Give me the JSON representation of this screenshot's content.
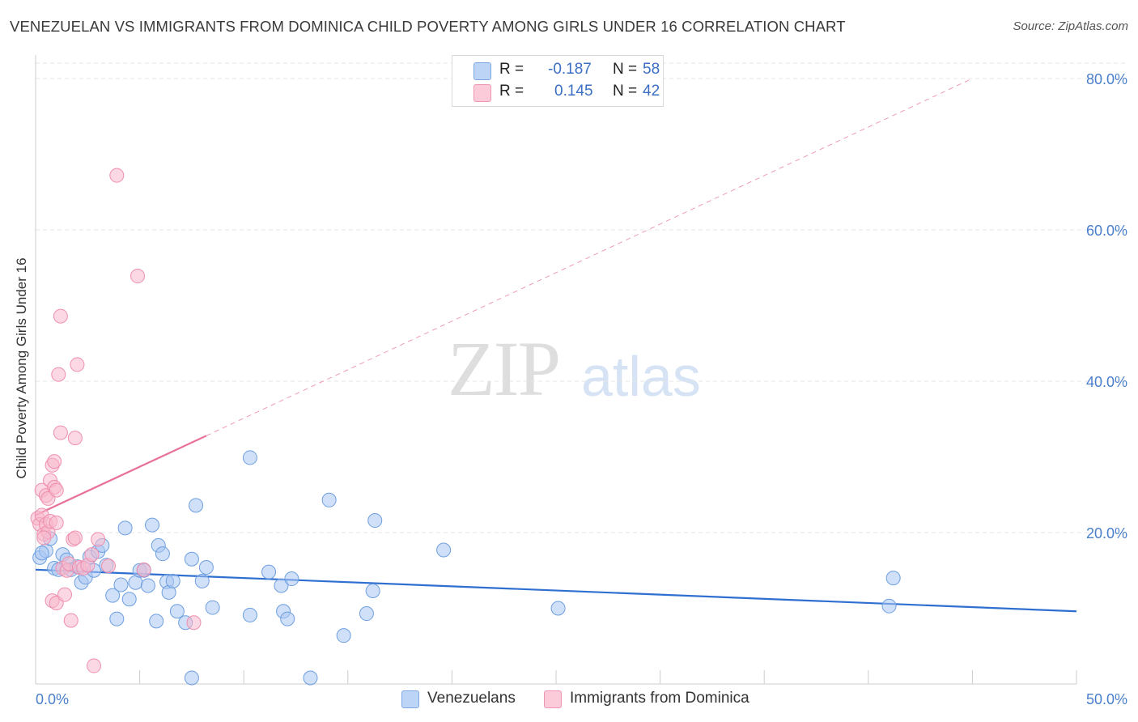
{
  "title": "VENEZUELAN VS IMMIGRANTS FROM DOMINICA CHILD POVERTY AMONG GIRLS UNDER 16 CORRELATION CHART",
  "source": "Source: ZipAtlas.com",
  "watermark": {
    "zip": "ZIP",
    "atlas": "atlas"
  },
  "legend": {
    "rows": [
      {
        "r_label": "R =",
        "r_value": "-0.187",
        "n_label": "N =",
        "n_value": "58",
        "color": "#a9c7f2"
      },
      {
        "r_label": "R =",
        "r_value": "0.145",
        "n_label": "N =",
        "n_value": "42",
        "color": "#f7b8cc"
      }
    ]
  },
  "bottom_legend": [
    {
      "label": "Venezuelans",
      "color": "#a9c7f2"
    },
    {
      "label": "Immigrants from Dominica",
      "color": "#f7b8cc"
    }
  ],
  "chart_data": {
    "type": "scatter",
    "title": "VENEZUELAN VS IMMIGRANTS FROM DOMINICA CHILD POVERTY AMONG GIRLS UNDER 16 CORRELATION CHART",
    "xlabel": "",
    "ylabel": "Child Poverty Among Girls Under 16",
    "xlim": [
      0,
      50
    ],
    "ylim": [
      0,
      84
    ],
    "x_tick_labels": [
      "0.0%",
      "50.0%"
    ],
    "y_ticks": [
      20,
      40,
      60,
      80
    ],
    "y_tick_labels": [
      "20.0%",
      "40.0%",
      "60.0%",
      "80.0%"
    ],
    "grid": true,
    "series": [
      {
        "name": "Venezuelans",
        "color": "#6e9fe0",
        "fill": "#a9c7f2",
        "points": [
          [
            0.2,
            16.7
          ],
          [
            0.5,
            17.6
          ],
          [
            0.7,
            19.2
          ],
          [
            0.9,
            15.3
          ],
          [
            1.1,
            15.1
          ],
          [
            1.3,
            17.1
          ],
          [
            1.5,
            16.4
          ],
          [
            1.7,
            15.1
          ],
          [
            2.0,
            15.5
          ],
          [
            2.2,
            13.4
          ],
          [
            2.4,
            14.1
          ],
          [
            2.6,
            16.8
          ],
          [
            2.8,
            15.0
          ],
          [
            3.0,
            17.5
          ],
          [
            3.2,
            18.3
          ],
          [
            3.4,
            15.7
          ],
          [
            3.7,
            11.7
          ],
          [
            3.9,
            8.6
          ],
          [
            4.1,
            13.1
          ],
          [
            4.3,
            20.6
          ],
          [
            4.5,
            11.2
          ],
          [
            4.8,
            13.4
          ],
          [
            5.0,
            15.0
          ],
          [
            5.2,
            15.0
          ],
          [
            5.4,
            13.0
          ],
          [
            5.6,
            21.0
          ],
          [
            5.8,
            8.3
          ],
          [
            5.9,
            18.3
          ],
          [
            6.1,
            17.2
          ],
          [
            6.3,
            13.5
          ],
          [
            6.4,
            12.1
          ],
          [
            6.6,
            13.6
          ],
          [
            6.8,
            9.6
          ],
          [
            7.2,
            8.1
          ],
          [
            7.5,
            16.5
          ],
          [
            7.7,
            23.6
          ],
          [
            8.0,
            13.6
          ],
          [
            8.2,
            15.4
          ],
          [
            8.5,
            10.1
          ],
          [
            7.5,
            0.8
          ],
          [
            10.3,
            9.1
          ],
          [
            10.3,
            29.9
          ],
          [
            11.2,
            14.8
          ],
          [
            11.8,
            13.0
          ],
          [
            11.9,
            9.6
          ],
          [
            12.1,
            8.6
          ],
          [
            12.3,
            13.9
          ],
          [
            13.2,
            0.8
          ],
          [
            14.1,
            24.3
          ],
          [
            14.8,
            6.4
          ],
          [
            15.9,
            9.3
          ],
          [
            16.2,
            12.3
          ],
          [
            16.3,
            21.6
          ],
          [
            19.6,
            17.7
          ],
          [
            25.1,
            10.0
          ],
          [
            41.0,
            10.3
          ],
          [
            41.2,
            14.0
          ],
          [
            0.3,
            17.3
          ]
        ]
      },
      {
        "name": "Immigrants from Dominica",
        "color": "#ef8fae",
        "fill": "#f7b8cc",
        "points": [
          [
            0.1,
            21.9
          ],
          [
            0.2,
            21.1
          ],
          [
            0.3,
            25.6
          ],
          [
            0.3,
            22.3
          ],
          [
            0.4,
            19.8
          ],
          [
            0.5,
            21.1
          ],
          [
            0.5,
            24.9
          ],
          [
            0.6,
            20.1
          ],
          [
            0.6,
            24.5
          ],
          [
            0.7,
            21.5
          ],
          [
            0.7,
            26.9
          ],
          [
            0.8,
            28.9
          ],
          [
            0.8,
            11.0
          ],
          [
            0.9,
            29.4
          ],
          [
            0.9,
            26.0
          ],
          [
            1.0,
            25.6
          ],
          [
            1.0,
            21.3
          ],
          [
            1.0,
            10.7
          ],
          [
            1.1,
            40.9
          ],
          [
            1.2,
            48.6
          ],
          [
            1.2,
            33.2
          ],
          [
            1.3,
            15.3
          ],
          [
            1.4,
            11.8
          ],
          [
            1.5,
            15.0
          ],
          [
            1.6,
            15.9
          ],
          [
            1.7,
            8.4
          ],
          [
            1.8,
            19.1
          ],
          [
            1.9,
            32.5
          ],
          [
            1.9,
            19.3
          ],
          [
            2.0,
            42.2
          ],
          [
            2.1,
            15.4
          ],
          [
            2.3,
            15.3
          ],
          [
            2.5,
            15.7
          ],
          [
            2.7,
            17.1
          ],
          [
            2.8,
            2.4
          ],
          [
            3.0,
            19.1
          ],
          [
            3.5,
            15.6
          ],
          [
            3.9,
            67.2
          ],
          [
            4.9,
            53.9
          ],
          [
            5.2,
            15.1
          ],
          [
            7.6,
            8.1
          ],
          [
            0.4,
            19.3
          ]
        ]
      }
    ],
    "trend_lines": [
      {
        "series": "Venezuelans",
        "x": [
          0,
          50
        ],
        "y": [
          15.1,
          9.6
        ],
        "style": "solid"
      },
      {
        "series": "Immigrants from Dominica",
        "x": [
          0,
          8.2
        ],
        "y": [
          22.3,
          32.8
        ],
        "style": "solid"
      },
      {
        "series": "Immigrants from Dominica",
        "x": [
          8.2,
          45
        ],
        "y": [
          32.8,
          80.0
        ],
        "style": "dashed"
      }
    ]
  }
}
